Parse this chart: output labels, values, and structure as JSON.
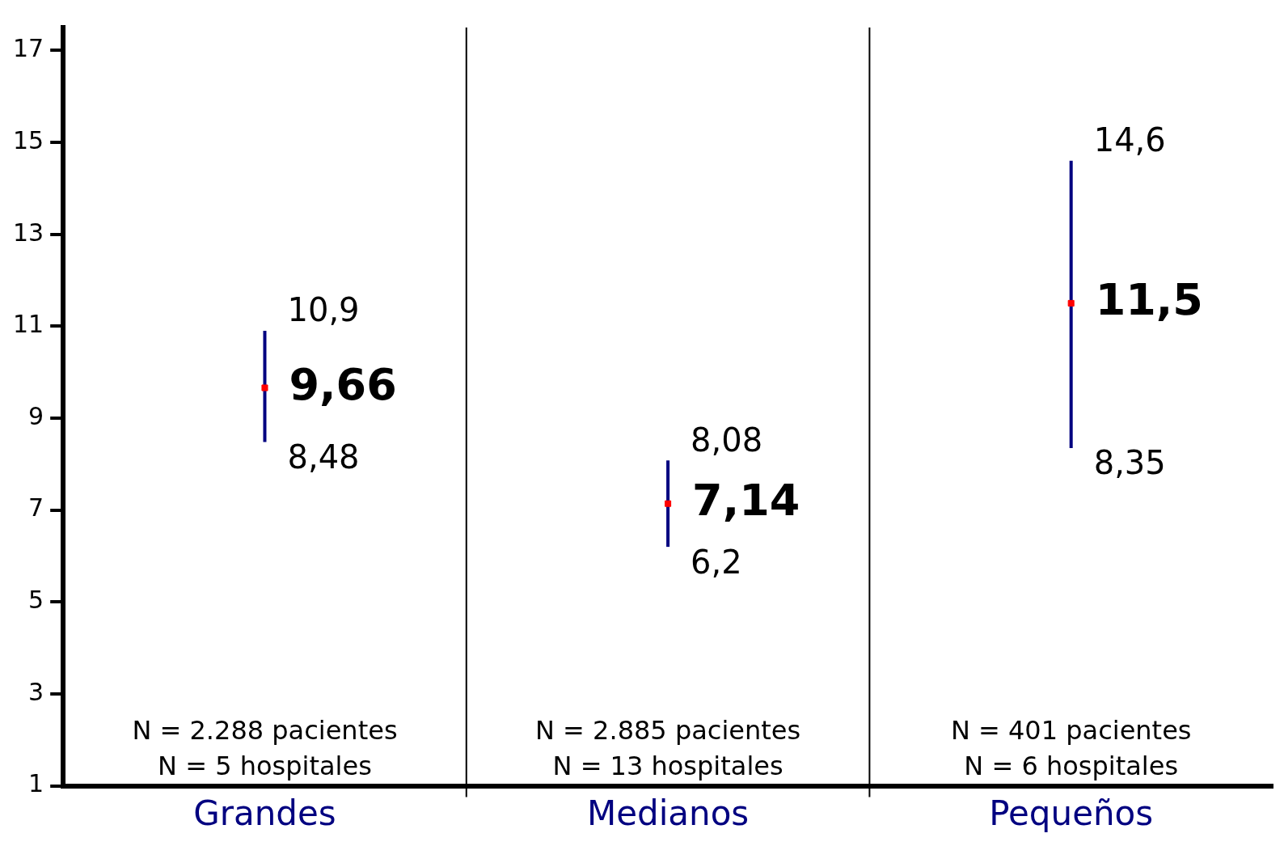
{
  "chart_data": {
    "type": "scatter",
    "categories": [
      "Grandes",
      "Medianos",
      "Pequeños"
    ],
    "series": [
      {
        "color": "#ff0000",
        "values": [
          9.66,
          7.14,
          11.5
        ],
        "errors": [
          [
            8.48,
            10.9
          ],
          [
            6.2,
            8.08
          ],
          [
            8.35,
            14.6
          ]
        ],
        "value_labels": [
          "9,66",
          "7,14",
          "11,5"
        ]
      }
    ],
    "ylim": [
      1,
      17.5
    ],
    "yticks": [
      1,
      3,
      5,
      7,
      9,
      11,
      13,
      15,
      17
    ],
    "grid": "x",
    "legend": false,
    "marker": "square",
    "annotations": [
      {
        "text": "10,9",
        "x": "Grandes",
        "y": 10.9
      },
      {
        "text": "8,48",
        "x": "Grandes",
        "y": 8.48
      },
      {
        "text": "8,08",
        "x": "Medianos",
        "y": 8.08
      },
      {
        "text": "6,2",
        "x": "Medianos",
        "y": 6.2
      },
      {
        "text": "14,6",
        "x": "Pequeños",
        "y": 14.6
      },
      {
        "text": "8,35",
        "x": "Pequeños",
        "y": 8.35
      },
      "N = 2.288 pacientes\nN = 5 hospitales",
      "N = 2.885 pacientes\nN = 13 hospitales",
      "N = 401 pacientes\nN = 6 hospitales"
    ]
  }
}
